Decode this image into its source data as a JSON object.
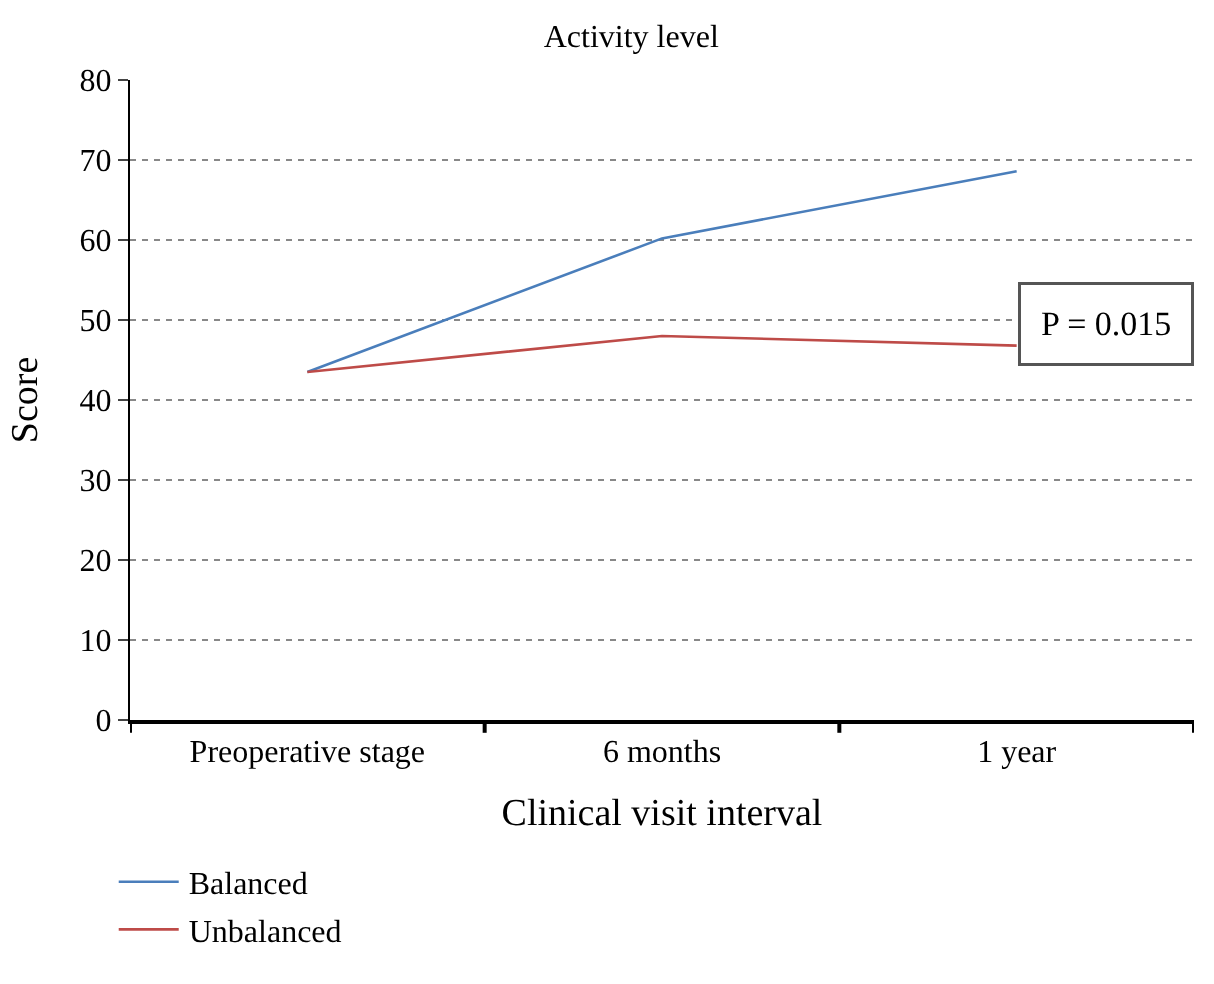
{
  "chart_data": {
    "type": "line",
    "title": "Activity level",
    "xlabel": "Clinical visit interval",
    "ylabel": "Score",
    "categories": [
      "Preoperative stage",
      "6 months",
      "1 year"
    ],
    "series": [
      {
        "name": "Balanced",
        "color": "#4a7ebb",
        "values": [
          43.5,
          60.2,
          68.6
        ]
      },
      {
        "name": "Unbalanced",
        "color": "#be4b48",
        "values": [
          43.5,
          48.0,
          46.8
        ]
      }
    ],
    "ylim": [
      0,
      80
    ],
    "yticks": [
      0,
      10,
      20,
      30,
      40,
      50,
      60,
      70,
      80
    ],
    "grid": "y",
    "legend": "bottom left",
    "marker": "none",
    "line_style": "solid",
    "annotations": [
      "P = 0.015"
    ]
  }
}
